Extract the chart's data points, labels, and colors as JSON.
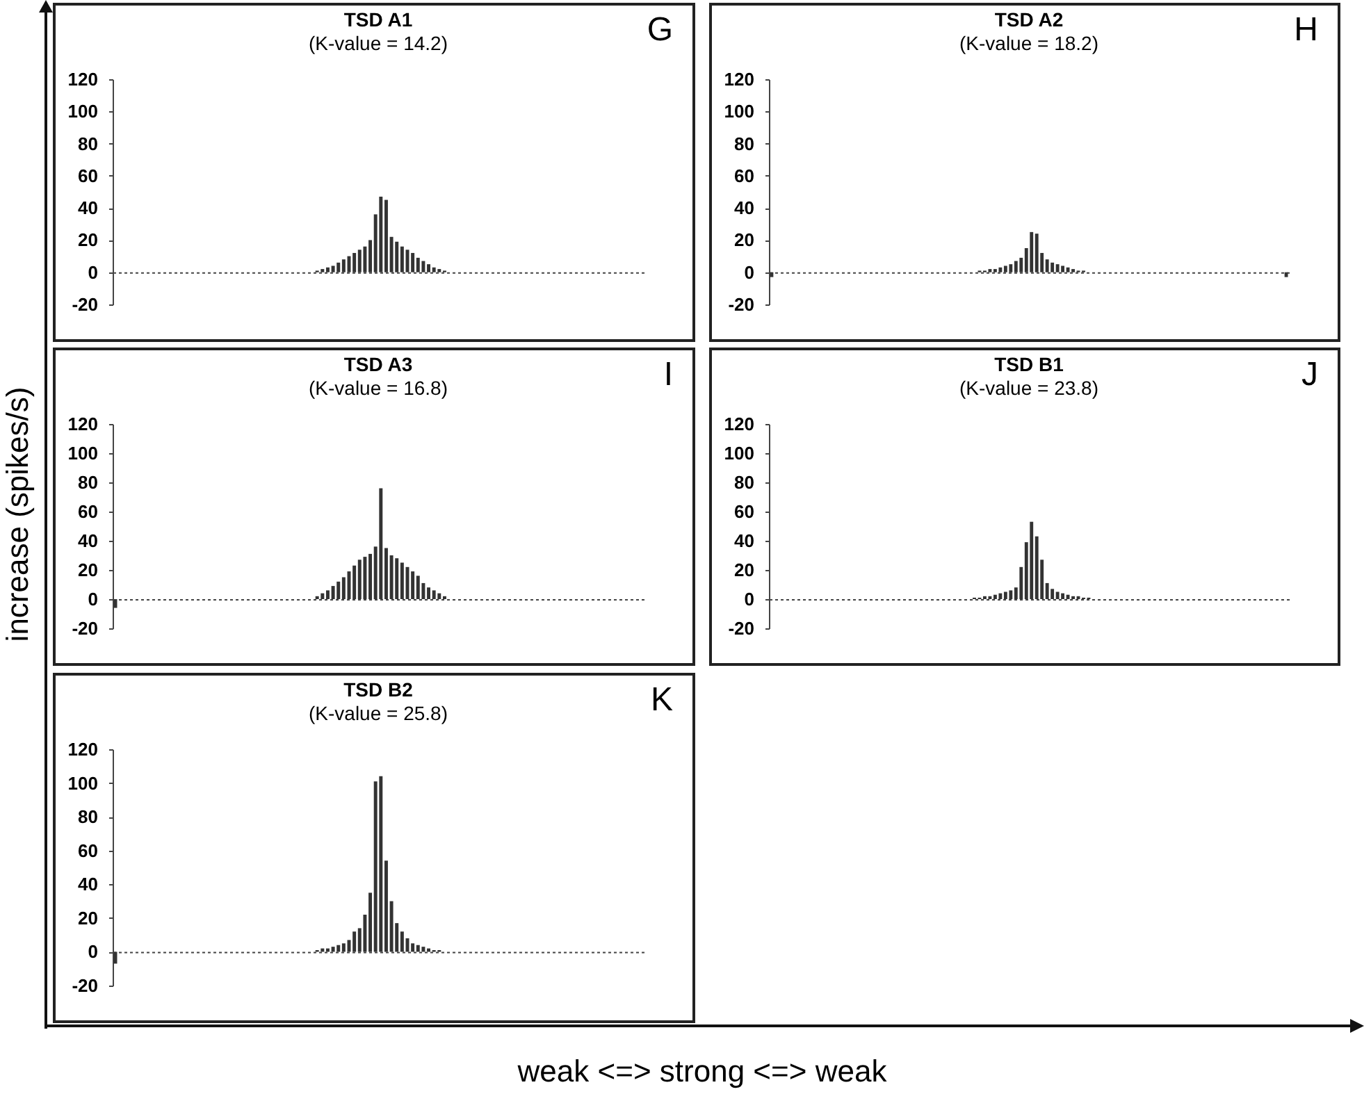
{
  "chart_data": [
    {
      "type": "bar",
      "title": "TSD A1",
      "subtitle": "(K-value = 14.2)",
      "annotations": [
        "G"
      ],
      "xlabel": "weak <=> strong <=> weak",
      "ylabel": "increase (spikes/s)",
      "categories": [
        null,
        null,
        null,
        null,
        null,
        null,
        null,
        null,
        null,
        null,
        null,
        null,
        null,
        null,
        null,
        null,
        null,
        null,
        null,
        null,
        null,
        null,
        null,
        null,
        null,
        null,
        null,
        null,
        null,
        null,
        null,
        null,
        null,
        null,
        null,
        null,
        null,
        null,
        null,
        null,
        null,
        null,
        null,
        null,
        null,
        null,
        null,
        null,
        null,
        null,
        null,
        null,
        null,
        null,
        null,
        null,
        null,
        null,
        null,
        null,
        null,
        null,
        null,
        null,
        null,
        null,
        null,
        null,
        null,
        null,
        null,
        null,
        null,
        null,
        null,
        null,
        null,
        null,
        null,
        null,
        null,
        null,
        null,
        null,
        null,
        null,
        null,
        null,
        null,
        null,
        null,
        null,
        null,
        null,
        null,
        null,
        null,
        null,
        null,
        null
      ],
      "values": [
        0,
        0,
        0,
        0,
        0,
        0,
        0,
        0,
        0,
        0,
        0,
        0,
        0,
        0,
        0,
        0,
        0,
        0,
        0,
        0,
        0,
        0,
        0,
        0,
        0,
        0,
        0,
        0,
        0,
        0,
        0,
        0,
        0,
        0,
        0,
        0,
        0,
        0,
        1,
        2,
        3,
        4,
        6,
        8,
        10,
        12,
        14,
        16,
        20,
        36,
        47,
        45,
        22,
        19,
        16,
        14,
        12,
        9,
        7,
        5,
        3,
        2,
        1,
        0,
        0,
        0,
        0,
        0,
        0,
        0,
        0,
        0,
        0,
        0,
        0,
        0,
        0,
        0,
        0,
        0,
        0,
        0,
        0,
        0,
        0,
        0,
        0,
        0,
        0,
        0,
        0,
        0,
        0,
        0,
        0,
        0,
        0,
        0,
        0,
        0
      ],
      "color": "#333333",
      "ylim": [
        -20,
        120
      ],
      "yticks": [
        -20,
        0,
        20,
        40,
        60,
        80,
        100,
        120
      ],
      "tick_labels": "y"
    },
    {
      "type": "bar",
      "title": "TSD A2",
      "subtitle": "(K-value = 18.2)",
      "annotations": [
        "H"
      ],
      "categories": [
        null,
        null,
        null,
        null,
        null,
        null,
        null,
        null,
        null,
        null,
        null,
        null,
        null,
        null,
        null,
        null,
        null,
        null,
        null,
        null,
        null,
        null,
        null,
        null,
        null,
        null,
        null,
        null,
        null,
        null,
        null,
        null,
        null,
        null,
        null,
        null,
        null,
        null,
        null,
        null,
        null,
        null,
        null,
        null,
        null,
        null,
        null,
        null,
        null,
        null,
        null,
        null,
        null,
        null,
        null,
        null,
        null,
        null,
        null,
        null,
        null,
        null,
        null,
        null,
        null,
        null,
        null,
        null,
        null,
        null,
        null,
        null,
        null,
        null,
        null,
        null,
        null,
        null,
        null,
        null,
        null,
        null,
        null,
        null,
        null,
        null,
        null,
        null,
        null,
        null,
        null,
        null,
        null,
        null,
        null,
        null,
        null,
        null,
        null,
        null
      ],
      "values": [
        -3,
        0,
        0,
        0,
        0,
        0,
        0,
        0,
        0,
        0,
        0,
        0,
        0,
        0,
        0,
        0,
        0,
        0,
        0,
        0,
        0,
        0,
        0,
        0,
        0,
        0,
        0,
        0,
        0,
        0,
        0,
        0,
        0,
        0,
        0,
        0,
        0,
        0,
        0,
        0,
        1,
        1,
        2,
        2,
        3,
        4,
        5,
        7,
        9,
        15,
        25,
        24,
        12,
        8,
        6,
        5,
        4,
        3,
        2,
        1,
        1,
        0,
        0,
        0,
        0,
        0,
        0,
        0,
        0,
        0,
        0,
        0,
        0,
        0,
        0,
        0,
        0,
        0,
        0,
        0,
        0,
        0,
        0,
        0,
        0,
        0,
        0,
        0,
        0,
        0,
        0,
        0,
        0,
        0,
        0,
        0,
        0,
        0,
        0,
        -3
      ],
      "color": "#333333",
      "ylim": [
        -20,
        120
      ],
      "yticks": [
        -20,
        0,
        20,
        40,
        60,
        80,
        100,
        120
      ],
      "tick_labels": "y"
    },
    {
      "type": "bar",
      "title": "TSD A3",
      "subtitle": "(K-value = 16.8)",
      "annotations": [
        "I"
      ],
      "categories": [
        null,
        null,
        null,
        null,
        null,
        null,
        null,
        null,
        null,
        null,
        null,
        null,
        null,
        null,
        null,
        null,
        null,
        null,
        null,
        null,
        null,
        null,
        null,
        null,
        null,
        null,
        null,
        null,
        null,
        null,
        null,
        null,
        null,
        null,
        null,
        null,
        null,
        null,
        null,
        null,
        null,
        null,
        null,
        null,
        null,
        null,
        null,
        null,
        null,
        null,
        null,
        null,
        null,
        null,
        null,
        null,
        null,
        null,
        null,
        null,
        null,
        null,
        null,
        null,
        null,
        null,
        null,
        null,
        null,
        null,
        null,
        null,
        null,
        null,
        null,
        null,
        null,
        null,
        null,
        null,
        null,
        null,
        null,
        null,
        null,
        null,
        null,
        null,
        null,
        null,
        null,
        null,
        null,
        null,
        null,
        null,
        null,
        null,
        null,
        null
      ],
      "values": [
        -6,
        0,
        0,
        0,
        0,
        0,
        0,
        0,
        0,
        0,
        0,
        0,
        0,
        0,
        0,
        0,
        0,
        0,
        0,
        0,
        0,
        0,
        0,
        0,
        0,
        0,
        0,
        0,
        0,
        0,
        0,
        0,
        0,
        0,
        0,
        0,
        0,
        0,
        2,
        4,
        6,
        9,
        12,
        15,
        19,
        23,
        27,
        29,
        31,
        36,
        76,
        35,
        30,
        28,
        25,
        22,
        19,
        16,
        11,
        8,
        6,
        4,
        2,
        0,
        0,
        0,
        0,
        0,
        0,
        0,
        0,
        0,
        0,
        0,
        0,
        0,
        0,
        0,
        0,
        0,
        0,
        0,
        0,
        0,
        0,
        0,
        0,
        0,
        0,
        0,
        0,
        0,
        0,
        0,
        0,
        0,
        0,
        0,
        0,
        0
      ],
      "color": "#333333",
      "ylim": [
        -20,
        120
      ],
      "yticks": [
        -20,
        0,
        20,
        40,
        60,
        80,
        100,
        120
      ],
      "tick_labels": "y"
    },
    {
      "type": "bar",
      "title": "TSD B1",
      "subtitle": "(K-value = 23.8)",
      "annotations": [
        "J"
      ],
      "categories": [
        null,
        null,
        null,
        null,
        null,
        null,
        null,
        null,
        null,
        null,
        null,
        null,
        null,
        null,
        null,
        null,
        null,
        null,
        null,
        null,
        null,
        null,
        null,
        null,
        null,
        null,
        null,
        null,
        null,
        null,
        null,
        null,
        null,
        null,
        null,
        null,
        null,
        null,
        null,
        null,
        null,
        null,
        null,
        null,
        null,
        null,
        null,
        null,
        null,
        null,
        null,
        null,
        null,
        null,
        null,
        null,
        null,
        null,
        null,
        null,
        null,
        null,
        null,
        null,
        null,
        null,
        null,
        null,
        null,
        null,
        null,
        null,
        null,
        null,
        null,
        null,
        null,
        null,
        null,
        null,
        null,
        null,
        null,
        null,
        null,
        null,
        null,
        null,
        null,
        null,
        null,
        null,
        null,
        null,
        null,
        null,
        null,
        null,
        null,
        null
      ],
      "values": [
        0,
        0,
        0,
        0,
        0,
        0,
        0,
        0,
        0,
        0,
        0,
        0,
        0,
        0,
        0,
        0,
        0,
        0,
        0,
        0,
        0,
        0,
        0,
        0,
        0,
        0,
        0,
        0,
        0,
        0,
        0,
        0,
        0,
        0,
        0,
        0,
        0,
        0,
        0,
        1,
        1,
        2,
        2,
        3,
        4,
        5,
        6,
        8,
        22,
        39,
        53,
        43,
        27,
        11,
        7,
        5,
        4,
        3,
        2,
        2,
        1,
        1,
        0,
        0,
        0,
        0,
        0,
        0,
        0,
        0,
        0,
        0,
        0,
        0,
        0,
        0,
        0,
        0,
        0,
        0,
        0,
        0,
        0,
        0,
        0,
        0,
        0,
        0,
        0,
        0,
        0,
        0,
        0,
        0,
        0,
        0,
        0,
        0,
        0,
        0
      ],
      "color": "#333333",
      "ylim": [
        -20,
        120
      ],
      "yticks": [
        -20,
        0,
        20,
        40,
        60,
        80,
        100,
        120
      ],
      "tick_labels": "y"
    },
    {
      "type": "bar",
      "title": "TSD B2",
      "subtitle": "(K-value = 25.8)",
      "annotations": [
        "K"
      ],
      "categories": [
        null,
        null,
        null,
        null,
        null,
        null,
        null,
        null,
        null,
        null,
        null,
        null,
        null,
        null,
        null,
        null,
        null,
        null,
        null,
        null,
        null,
        null,
        null,
        null,
        null,
        null,
        null,
        null,
        null,
        null,
        null,
        null,
        null,
        null,
        null,
        null,
        null,
        null,
        null,
        null,
        null,
        null,
        null,
        null,
        null,
        null,
        null,
        null,
        null,
        null,
        null,
        null,
        null,
        null,
        null,
        null,
        null,
        null,
        null,
        null,
        null,
        null,
        null,
        null,
        null,
        null,
        null,
        null,
        null,
        null,
        null,
        null,
        null,
        null,
        null,
        null,
        null,
        null,
        null,
        null,
        null,
        null,
        null,
        null,
        null,
        null,
        null,
        null,
        null,
        null,
        null,
        null,
        null,
        null,
        null,
        null,
        null,
        null,
        null,
        null
      ],
      "values": [
        -7,
        0,
        0,
        0,
        0,
        0,
        0,
        0,
        0,
        0,
        0,
        0,
        0,
        0,
        0,
        0,
        0,
        0,
        0,
        0,
        0,
        0,
        0,
        0,
        0,
        0,
        0,
        0,
        0,
        0,
        0,
        0,
        0,
        0,
        0,
        0,
        0,
        0,
        1,
        2,
        2,
        3,
        4,
        5,
        7,
        12,
        14,
        22,
        35,
        101,
        104,
        54,
        30,
        17,
        12,
        8,
        5,
        4,
        3,
        2,
        1,
        1,
        0,
        0,
        0,
        0,
        0,
        0,
        0,
        0,
        0,
        0,
        0,
        0,
        0,
        0,
        0,
        0,
        0,
        0,
        0,
        0,
        0,
        0,
        0,
        0,
        0,
        0,
        0,
        0,
        0,
        0,
        0,
        0,
        0,
        0,
        0,
        0,
        0,
        0
      ],
      "color": "#333333",
      "ylim": [
        -20,
        120
      ],
      "yticks": [
        -20,
        0,
        20,
        40,
        60,
        80,
        100,
        120
      ],
      "tick_labels": "y"
    }
  ]
}
